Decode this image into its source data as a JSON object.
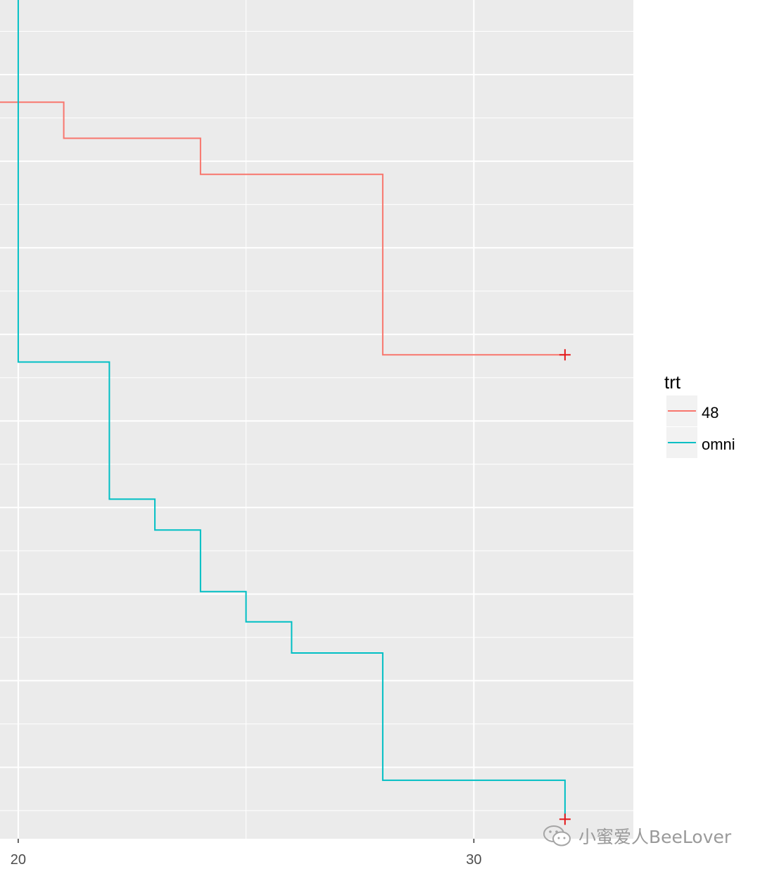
{
  "chart_data": {
    "type": "line",
    "subtype": "step (survival curve)",
    "title": "",
    "xlabel": "",
    "ylabel": "",
    "x_ticks": [
      20,
      30
    ],
    "xlim": [
      19.6,
      33.5
    ],
    "ylim": [
      0,
      1
    ],
    "grid": true,
    "legend": {
      "title": "trt",
      "position": "right"
    },
    "series": [
      {
        "name": "48",
        "color": "#F8766D",
        "points": [
          [
            19.6,
            0.8681
          ],
          [
            20.0,
            0.8681
          ],
          [
            20.0,
            0.8681
          ],
          [
            21.0,
            0.8681
          ],
          [
            21.0,
            0.8265
          ],
          [
            24.0,
            0.8265
          ],
          [
            24.0,
            0.7848
          ],
          [
            28.0,
            0.7848
          ],
          [
            28.0,
            0.5764
          ],
          [
            32.0,
            0.5764
          ]
        ],
        "censor": [
          [
            32.0,
            0.5764
          ]
        ]
      },
      {
        "name": "omni",
        "color": "#00BFC4",
        "points": [
          [
            19.6,
            0.9931
          ],
          [
            20.0,
            0.9931
          ],
          [
            20.0,
            0.5681
          ],
          [
            22.0,
            0.5681
          ],
          [
            22.0,
            0.4097
          ],
          [
            23.0,
            0.4097
          ],
          [
            23.0,
            0.374
          ],
          [
            24.0,
            0.374
          ],
          [
            24.0,
            0.303
          ],
          [
            25.0,
            0.303
          ],
          [
            25.0,
            0.268
          ],
          [
            26.0,
            0.268
          ],
          [
            26.0,
            0.232
          ],
          [
            28.0,
            0.232
          ],
          [
            28.0,
            0.085
          ],
          [
            32.0,
            0.085
          ],
          [
            32.0,
            0.04
          ]
        ],
        "censor": [
          [
            32.0,
            0.04
          ]
        ]
      }
    ],
    "censor_color": "#E41A1C",
    "panel_background": "#EBEBEB",
    "grid_color": "#FFFFFF"
  },
  "watermark": {
    "text": "小蜜爱人BeeLover",
    "icon": "wechat-icon"
  }
}
